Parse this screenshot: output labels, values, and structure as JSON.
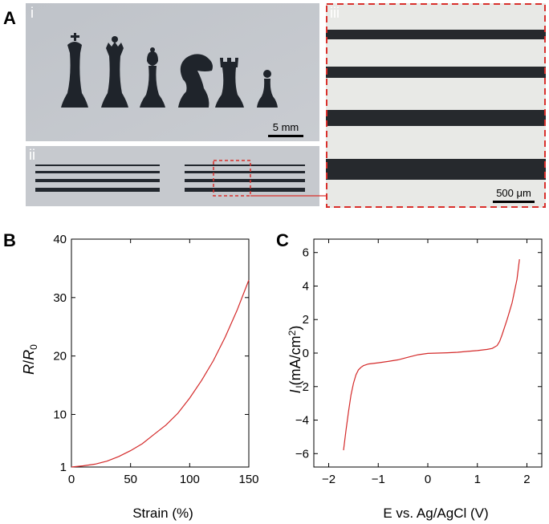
{
  "figure": {
    "panels": {
      "A": "A",
      "B": "B",
      "C": "C"
    },
    "subpanels": {
      "i": "i",
      "ii": "ii",
      "iii": "iii"
    },
    "scale_bars": {
      "chess": "5 mm",
      "micro": "500 μm"
    },
    "colors": {
      "curve": "#d42a2a",
      "highlight": "#d9302c",
      "photo_bg": "#c2c5cb",
      "micro_bg": "#e8e9e6",
      "ink": "#1f242b"
    }
  },
  "chart_data": [
    {
      "type": "line",
      "panel": "B",
      "xlabel": "Strain (%)",
      "ylabel_main": "R",
      "ylabel_mid": "/",
      "ylabel_sub_main": "R",
      "ylabel_sub": "0",
      "xlim": [
        0,
        150
      ],
      "ylim": [
        1,
        40
      ],
      "xticks": [
        0,
        50,
        100,
        150
      ],
      "yticks": [
        1,
        10,
        20,
        30,
        40
      ],
      "x": [
        0,
        10,
        20,
        30,
        40,
        50,
        60,
        70,
        80,
        90,
        100,
        110,
        120,
        130,
        140,
        150
      ],
      "y": [
        1.0,
        1.2,
        1.5,
        2.0,
        2.8,
        3.8,
        5.0,
        6.6,
        8.2,
        10.2,
        12.8,
        15.8,
        19.2,
        23.2,
        27.8,
        33.0
      ]
    },
    {
      "type": "line",
      "panel": "C",
      "xlabel": "E vs. Ag/AgCl (V)",
      "ylabel_italic": "I",
      "ylabel_main": " (mA/cm",
      "ylabel_sup": "2",
      "ylabel_end": ")",
      "xlim": [
        -2.3,
        2.3
      ],
      "ylim": [
        -6.8,
        6.8
      ],
      "xticks": [
        -2,
        -1,
        0,
        1,
        2
      ],
      "xtick_labels": [
        "−2",
        "−1",
        "0",
        "1",
        "2"
      ],
      "yticks": [
        -6,
        -4,
        -2,
        0,
        2,
        4,
        6
      ],
      "ytick_labels": [
        "−6",
        "−4",
        "−2",
        "0",
        "2",
        "4",
        "6"
      ],
      "x": [
        -1.7,
        -1.65,
        -1.6,
        -1.55,
        -1.5,
        -1.45,
        -1.4,
        -1.35,
        -1.3,
        -1.2,
        -1.0,
        -0.8,
        -0.6,
        -0.4,
        -0.2,
        0.0,
        0.2,
        0.4,
        0.6,
        0.8,
        1.0,
        1.2,
        1.3,
        1.4,
        1.45,
        1.5,
        1.6,
        1.7,
        1.8,
        1.85
      ],
      "y": [
        -5.8,
        -4.6,
        -3.5,
        -2.5,
        -1.8,
        -1.3,
        -1.0,
        -0.85,
        -0.75,
        -0.65,
        -0.58,
        -0.5,
        -0.4,
        -0.25,
        -0.1,
        -0.02,
        0.0,
        0.02,
        0.05,
        0.1,
        0.15,
        0.22,
        0.28,
        0.45,
        0.7,
        1.1,
        2.0,
        3.0,
        4.4,
        5.6
      ]
    }
  ]
}
